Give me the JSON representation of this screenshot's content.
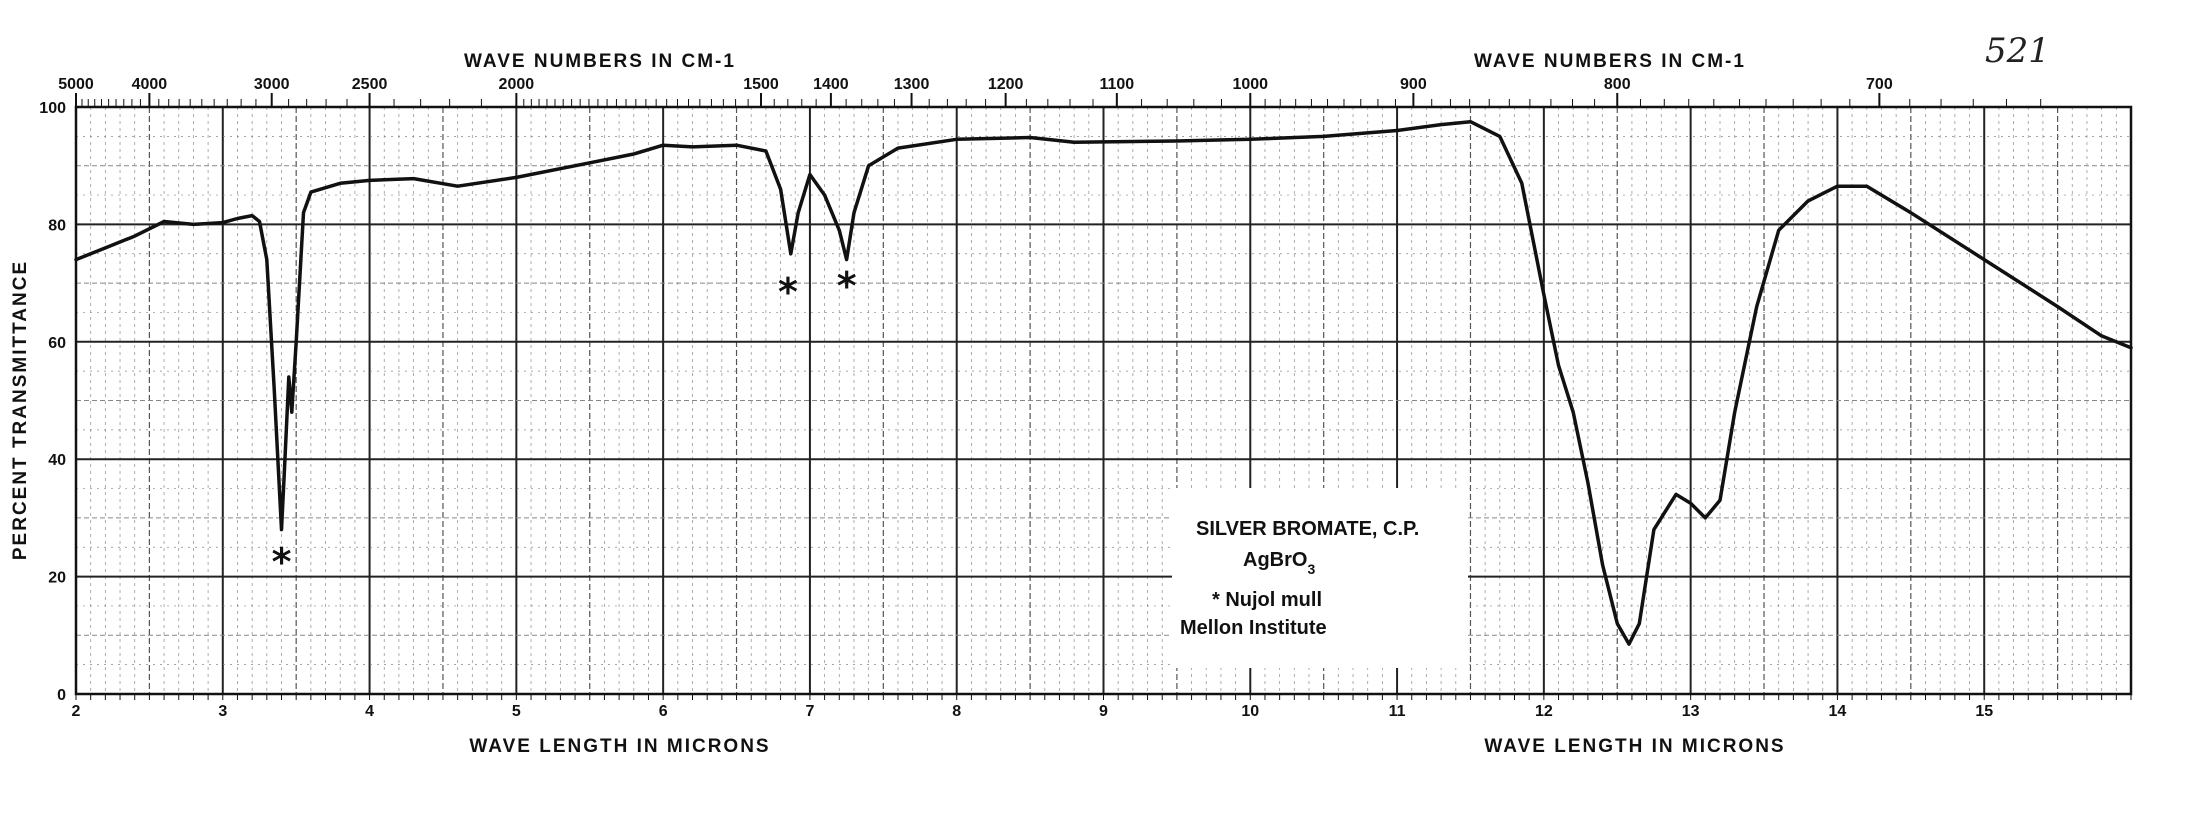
{
  "page_number": "521",
  "chart_data": {
    "type": "line",
    "title": "",
    "xlabel": "WAVE LENGTH IN MICRONS",
    "x2label": "WAVE NUMBERS IN CM-1",
    "ylabel": "PERCENT TRANSMITTANCE",
    "xlim": [
      2,
      16
    ],
    "ylim": [
      0,
      100
    ],
    "grid": true,
    "yticks": [
      "0",
      "20",
      "40",
      "60",
      "80",
      "100"
    ],
    "xticks": [
      "2",
      "3",
      "4",
      "5",
      "6",
      "7",
      "8",
      "9",
      "10",
      "11",
      "12",
      "13",
      "14",
      "15"
    ],
    "x2ticks": [
      "5000",
      "4000",
      "3000",
      "2500",
      "2000",
      "1500",
      "1400",
      "1300",
      "1200",
      "1100",
      "1000",
      "900",
      "800",
      "700"
    ],
    "series": [
      {
        "values": [
          [
            2.0,
            74
          ],
          [
            2.2,
            76
          ],
          [
            2.4,
            78
          ],
          [
            2.6,
            80.5
          ],
          [
            2.8,
            80
          ],
          [
            3.0,
            80.3
          ],
          [
            3.1,
            81
          ],
          [
            3.2,
            81.5
          ],
          [
            3.25,
            80.5
          ],
          [
            3.3,
            74
          ],
          [
            3.35,
            52
          ],
          [
            3.4,
            28
          ],
          [
            3.42,
            38
          ],
          [
            3.45,
            54
          ],
          [
            3.47,
            48
          ],
          [
            3.5,
            60
          ],
          [
            3.55,
            82
          ],
          [
            3.6,
            85.5
          ],
          [
            3.8,
            87
          ],
          [
            4.0,
            87.5
          ],
          [
            4.3,
            87.8
          ],
          [
            4.6,
            86.5
          ],
          [
            5.0,
            88
          ],
          [
            5.5,
            90.5
          ],
          [
            5.8,
            92
          ],
          [
            6.0,
            93.5
          ],
          [
            6.2,
            93.2
          ],
          [
            6.5,
            93.5
          ],
          [
            6.7,
            92.5
          ],
          [
            6.8,
            86
          ],
          [
            6.87,
            75
          ],
          [
            6.92,
            82
          ],
          [
            7.0,
            88.5
          ],
          [
            7.1,
            85
          ],
          [
            7.2,
            79
          ],
          [
            7.25,
            74
          ],
          [
            7.3,
            82
          ],
          [
            7.4,
            90
          ],
          [
            7.6,
            93
          ],
          [
            8.0,
            94.5
          ],
          [
            8.5,
            94.8
          ],
          [
            8.8,
            94
          ],
          [
            9.5,
            94.2
          ],
          [
            10.0,
            94.5
          ],
          [
            10.5,
            95
          ],
          [
            11.0,
            96
          ],
          [
            11.3,
            97
          ],
          [
            11.5,
            97.5
          ],
          [
            11.7,
            95
          ],
          [
            11.85,
            87
          ],
          [
            12.0,
            68
          ],
          [
            12.1,
            56
          ],
          [
            12.2,
            48
          ],
          [
            12.3,
            36
          ],
          [
            12.4,
            22
          ],
          [
            12.5,
            12
          ],
          [
            12.58,
            8.5
          ],
          [
            12.65,
            12
          ],
          [
            12.75,
            28
          ],
          [
            12.9,
            34
          ],
          [
            13.0,
            32.5
          ],
          [
            13.1,
            30
          ],
          [
            13.2,
            33
          ],
          [
            13.3,
            48
          ],
          [
            13.45,
            66
          ],
          [
            13.6,
            79
          ],
          [
            13.8,
            84
          ],
          [
            14.0,
            86.5
          ],
          [
            14.2,
            86.5
          ],
          [
            14.5,
            82
          ],
          [
            15.0,
            74
          ],
          [
            15.5,
            66
          ],
          [
            15.8,
            61
          ],
          [
            16.0,
            59
          ]
        ]
      }
    ],
    "annotations": [
      {
        "label": "*",
        "x": 3.4,
        "y": 23
      },
      {
        "label": "*",
        "x": 6.85,
        "y": 69
      },
      {
        "label": "*",
        "x": 7.25,
        "y": 70
      }
    ]
  },
  "legend_box": {
    "line1": "SILVER BROMATE, C.P.",
    "line2_main": "AgBrO",
    "line2_sub": "3",
    "line3": "* Nujol mull",
    "line4": "Mellon Institute"
  }
}
